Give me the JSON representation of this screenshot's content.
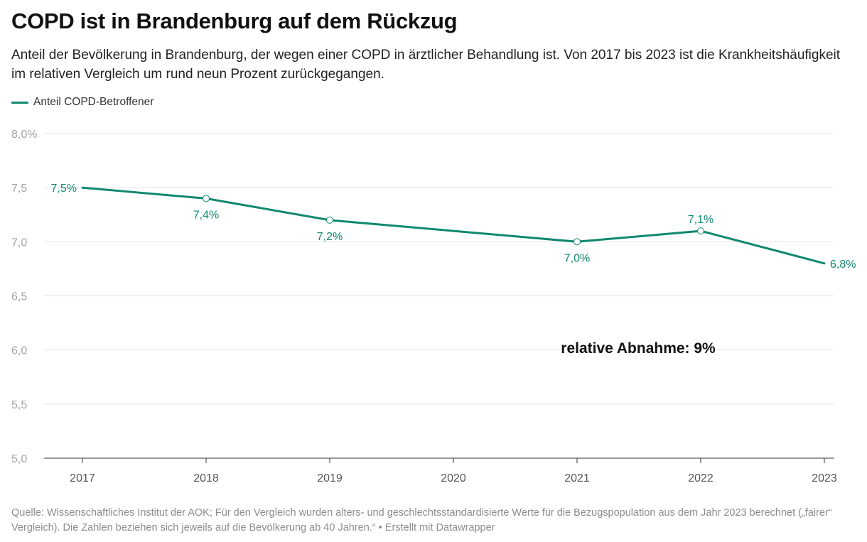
{
  "title": "COPD ist in Brandenburg auf dem Rückzug",
  "subtitle": "Anteil der Bevölkerung in Brandenburg, der wegen einer COPD in ärztlicher Behandlung ist. Von 2017 bis 2023 ist die Krankheitshäufigkeit im relativen Vergleich um rund neun Prozent zurückgegangen.",
  "legend_label": "Anteil COPD-Betroffener",
  "annotation": "relative Abnahme: 9%",
  "source": "Quelle: Wissenschaftliches Institut der AOK; Für den Vergleich wurden alters- und geschlechtsstandardisierte Werte für die Bezugspopulation aus dem Jahr 2023 berechnet („fairer“ Vergleich). Die Zahlen beziehen sich jeweils auf die Bevölkerung ab 40 Jahren.“ • Erstellt mit Datawrapper",
  "colors": {
    "line": "#108870",
    "grid": "#e6e6e6",
    "tick_text": "#a3a3a3",
    "axis_text": "#555555"
  },
  "chart_data": {
    "type": "line",
    "x": [
      "2017",
      "2018",
      "2019",
      "2020",
      "2021",
      "2022",
      "2023"
    ],
    "series": [
      {
        "name": "Anteil COPD-Betroffener",
        "values": [
          7.5,
          7.4,
          7.2,
          7.1,
          7.0,
          7.1,
          6.8
        ],
        "data_labels": [
          "7,5%",
          "7,4%",
          "7,2%",
          "",
          "7,0%",
          "7,1%",
          "6,8%"
        ],
        "markers": [
          false,
          true,
          true,
          false,
          true,
          true,
          false
        ]
      }
    ],
    "ylim": [
      5.0,
      8.0
    ],
    "y_ticks": [
      5.0,
      5.5,
      6.0,
      6.5,
      7.0,
      7.5,
      8.0
    ],
    "y_tick_labels": [
      "5,0",
      "5,5",
      "6,0",
      "6,5",
      "7,0",
      "7,5",
      "8,0%"
    ],
    "xlabel": "",
    "ylabel": "",
    "grid": true,
    "legend": "top-left"
  }
}
